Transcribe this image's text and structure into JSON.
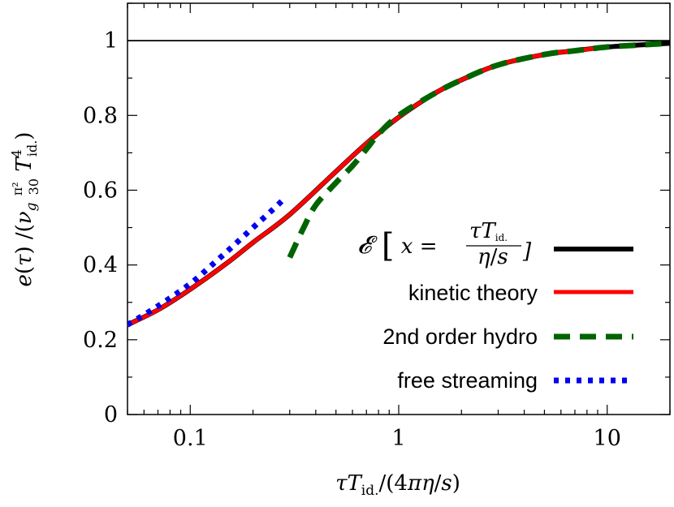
{
  "chart_data": {
    "type": "line",
    "xscale": "log",
    "xlim": [
      0.05,
      20
    ],
    "ylim": [
      0,
      1.1
    ],
    "xticks": [
      {
        "value": 0.1,
        "label": "0.1"
      },
      {
        "value": 1,
        "label": "1"
      },
      {
        "value": 10,
        "label": "10"
      }
    ],
    "yticks": [
      {
        "value": 0,
        "label": "0"
      },
      {
        "value": 0.2,
        "label": "0.2"
      },
      {
        "value": 0.4,
        "label": "0.4"
      },
      {
        "value": 0.6,
        "label": "0.6"
      },
      {
        "value": 0.8,
        "label": "0.8"
      },
      {
        "value": 1,
        "label": "1"
      }
    ],
    "xlabel": "τT_id./(4πη/s)",
    "ylabel": "e(τ)/(ν_g π²/30 T⁴_id.)",
    "reference_line": {
      "y": 1,
      "color": "#000000"
    },
    "legend_position": "right",
    "series": [
      {
        "name": "𝓔[x = τT_id./(η/s)]",
        "color": "#000000",
        "style": "solid",
        "x": [
          0.05,
          0.07,
          0.1,
          0.15,
          0.2,
          0.3,
          0.5,
          0.7,
          1,
          1.5,
          2,
          3,
          5,
          7,
          10,
          15,
          20
        ],
        "y": [
          0.24,
          0.28,
          0.335,
          0.405,
          0.46,
          0.535,
          0.65,
          0.725,
          0.795,
          0.86,
          0.895,
          0.935,
          0.963,
          0.973,
          0.983,
          0.989,
          0.993
        ]
      },
      {
        "name": "kinetic theory",
        "color": "#ff0000",
        "style": "solid",
        "x": [
          0.05,
          0.07,
          0.1,
          0.15,
          0.2,
          0.3,
          0.5,
          0.7,
          1,
          1.5,
          2,
          3,
          5,
          7,
          10
        ],
        "y": [
          0.24,
          0.28,
          0.335,
          0.405,
          0.46,
          0.535,
          0.65,
          0.725,
          0.795,
          0.86,
          0.895,
          0.935,
          0.963,
          0.973,
          0.983
        ]
      },
      {
        "name": "2nd order hydro",
        "color": "#006400",
        "style": "dashed",
        "x": [
          0.3,
          0.35,
          0.4,
          0.5,
          0.6,
          0.7,
          0.8,
          1,
          1.5,
          2,
          3,
          5,
          7,
          10,
          15,
          20
        ],
        "y": [
          0.42,
          0.5,
          0.56,
          0.62,
          0.665,
          0.71,
          0.75,
          0.8,
          0.86,
          0.895,
          0.935,
          0.963,
          0.973,
          0.983,
          0.989,
          0.993
        ]
      },
      {
        "name": "free streaming",
        "color": "#0000ee",
        "style": "dotted",
        "x": [
          0.05,
          0.07,
          0.1,
          0.13,
          0.16,
          0.2,
          0.24,
          0.28
        ],
        "y": [
          0.24,
          0.29,
          0.35,
          0.405,
          0.45,
          0.5,
          0.54,
          0.575
        ]
      }
    ]
  }
}
